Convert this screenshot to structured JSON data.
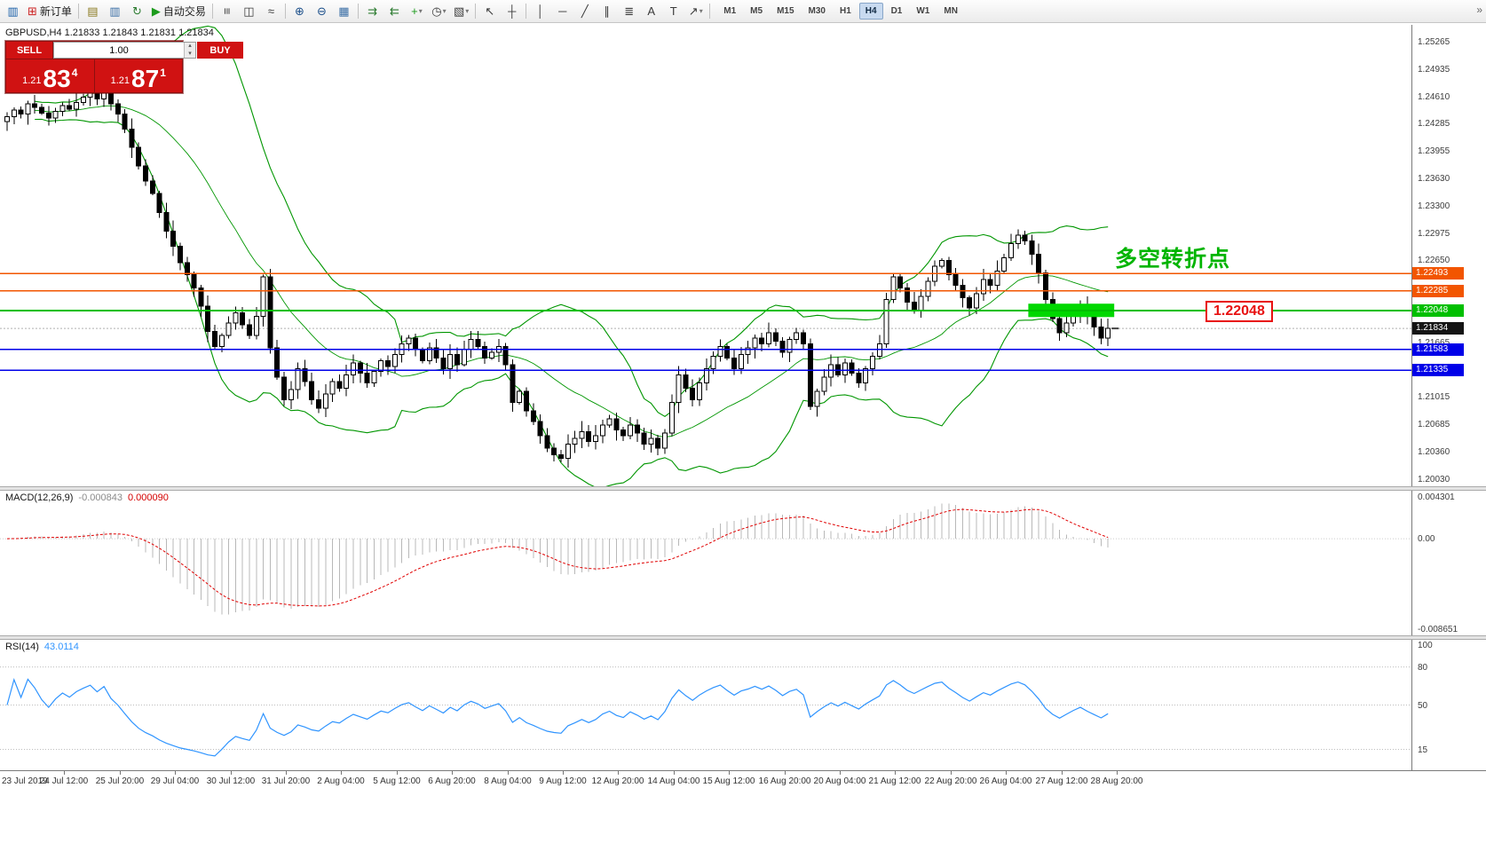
{
  "toolbar": {
    "icons": [
      {
        "name": "terminal-icon",
        "glyph": "▥",
        "color": "#1a5fa8"
      },
      {
        "name": "new-order-button",
        "glyph": "⊞",
        "color": "#cc2222",
        "label": "新订单"
      },
      {
        "name": "sep"
      },
      {
        "name": "market-watch-icon",
        "glyph": "▤",
        "color": "#8a7a20"
      },
      {
        "name": "data-window-icon",
        "glyph": "▥",
        "color": "#3a6ea5"
      },
      {
        "name": "refresh-icon",
        "glyph": "↻",
        "color": "#2e7d32"
      },
      {
        "name": "auto-trading-button",
        "glyph": "▶",
        "color": "#1d9b1d",
        "label": "自动交易"
      },
      {
        "name": "sep"
      },
      {
        "name": "bar-chart-icon",
        "glyph": "≡",
        "rotate": true
      },
      {
        "name": "candlestick-chart-icon",
        "glyph": "◫"
      },
      {
        "name": "line-chart-icon",
        "glyph": "≈"
      },
      {
        "name": "sep"
      },
      {
        "name": "zoom-in-icon",
        "glyph": "⊕",
        "color": "#1b4f8a"
      },
      {
        "name": "zoom-out-icon",
        "glyph": "⊖",
        "color": "#1b4f8a"
      },
      {
        "name": "tile-windows-icon",
        "glyph": "▦",
        "color": "#3a6ea5"
      },
      {
        "name": "sep"
      },
      {
        "name": "auto-scroll-icon",
        "glyph": "⇉",
        "color": "#2e7d32"
      },
      {
        "name": "chart-shift-icon",
        "glyph": "⇇",
        "color": "#2e7d32"
      },
      {
        "name": "indicators-icon",
        "glyph": "+",
        "color": "#1d9b1d",
        "dropdown": true
      },
      {
        "name": "periods-icon",
        "glyph": "◷",
        "dropdown": true
      },
      {
        "name": "templates-icon",
        "glyph": "▧",
        "dropdown": true
      },
      {
        "name": "sep"
      },
      {
        "name": "cursor-icon",
        "glyph": "↖"
      },
      {
        "name": "crosshair-icon",
        "glyph": "┼"
      },
      {
        "name": "sep"
      },
      {
        "name": "vertical-line-icon",
        "glyph": "│"
      },
      {
        "name": "horizontal-line-icon",
        "glyph": "─"
      },
      {
        "name": "trendline-icon",
        "glyph": "╱"
      },
      {
        "name": "channel-icon",
        "glyph": "∥"
      },
      {
        "name": "fibonacci-icon",
        "glyph": "≣"
      },
      {
        "name": "text-icon",
        "glyph": "A"
      },
      {
        "name": "text-label-icon",
        "glyph": "T"
      },
      {
        "name": "arrows-icon",
        "glyph": "↗",
        "dropdown": true
      },
      {
        "name": "sep"
      }
    ],
    "timeframes": [
      "M1",
      "M5",
      "M15",
      "M30",
      "H1",
      "H4",
      "D1",
      "W1",
      "MN"
    ],
    "active_timeframe": "H4",
    "overflow_glyph": "»"
  },
  "chart": {
    "symbol_ohlc": "GBPUSD,H4 1.21833 1.21843 1.21831 1.21834",
    "trade_panel": {
      "sell_label": "SELL",
      "buy_label": "BUY",
      "volume": "1.00",
      "sell_small": "1.21",
      "sell_big": "83",
      "sell_sup": "4",
      "buy_small": "1.21",
      "buy_big": "87",
      "buy_sup": "1"
    },
    "annotation": "多空转折点",
    "callout": "1.22048",
    "current_price": {
      "value": 1.21834,
      "label": "1.21834"
    },
    "levels": [
      {
        "value": 1.22493,
        "label": "1.22493",
        "color": "#f25500"
      },
      {
        "value": 1.22285,
        "label": "1.22285",
        "color": "#f25500"
      },
      {
        "value": 1.22048,
        "label": "1.22048",
        "color": "#00bf00"
      },
      {
        "value": 1.21583,
        "label": "1.21583",
        "color": "#0000e8"
      },
      {
        "value": 1.21335,
        "label": "1.21335",
        "color": "#0000e8"
      }
    ],
    "axis_ticks": [
      "1.25265",
      "1.24935",
      "1.24610",
      "1.24285",
      "1.23955",
      "1.23630",
      "1.23300",
      "1.22975",
      "1.22650",
      "1.21665",
      "1.21015",
      "1.20685",
      "1.20360",
      "1.20030"
    ],
    "highlight_zone": {
      "price_top": 1.2213,
      "price_bottom": 1.2197,
      "start_index": 148,
      "end_index": 159,
      "color": "#00d800"
    }
  },
  "macd": {
    "label": "MACD(12,26,9)",
    "value_main": "-0.000843",
    "value_signal": "0.000090",
    "axis": [
      "0.004301",
      "0.00",
      "-0.008651"
    ],
    "max": 0.004301,
    "min": -0.008651
  },
  "rsi": {
    "label": "RSI(14)",
    "value": "43.0114",
    "axis": [
      "100",
      "80",
      "50",
      "15"
    ],
    "levels": [
      80,
      50,
      15
    ]
  },
  "time_axis": [
    "23 Jul 2019",
    "24 Jul 12:00",
    "25 Jul 20:00",
    "29 Jul 04:00",
    "30 Jul 12:00",
    "31 Jul 20:00",
    "2 Aug 04:00",
    "5 Aug 12:00",
    "6 Aug 20:00",
    "8 Aug 04:00",
    "9 Aug 12:00",
    "12 Aug 20:00",
    "14 Aug 04:00",
    "15 Aug 12:00",
    "16 Aug 20:00",
    "20 Aug 04:00",
    "21 Aug 12:00",
    "22 Aug 20:00",
    "26 Aug 04:00",
    "27 Aug 12:00",
    "28 Aug 20:00"
  ],
  "chart_data": {
    "type": "candlestick",
    "symbol": "GBPUSD",
    "timeframe": "H4",
    "price_range": [
      1.2003,
      1.25265
    ],
    "indicators": [
      "Bollinger Bands",
      "MACD(12,26,9)",
      "RSI(14)"
    ],
    "closes": [
      1.2437,
      1.2445,
      1.244,
      1.2452,
      1.2448,
      1.2441,
      1.2435,
      1.2443,
      1.245,
      1.2446,
      1.2454,
      1.246,
      1.2466,
      1.2458,
      1.247,
      1.2452,
      1.244,
      1.2422,
      1.24,
      1.2378,
      1.236,
      1.2345,
      1.2322,
      1.23,
      1.2282,
      1.2262,
      1.2248,
      1.2232,
      1.221,
      1.218,
      1.2162,
      1.2175,
      1.219,
      1.2202,
      1.2188,
      1.2175,
      1.2198,
      1.2245,
      1.216,
      1.2125,
      1.2098,
      1.211,
      1.2135,
      1.212,
      1.2098,
      1.2088,
      1.2105,
      1.212,
      1.2112,
      1.2128,
      1.2142,
      1.213,
      1.2118,
      1.2132,
      1.2145,
      1.2138,
      1.2152,
      1.2165,
      1.2172,
      1.2158,
      1.2145,
      1.216,
      1.2148,
      1.2135,
      1.2152,
      1.214,
      1.2158,
      1.217,
      1.2162,
      1.2148,
      1.2155,
      1.2162,
      1.214,
      1.2095,
      1.2108,
      1.2085,
      1.2072,
      1.2055,
      1.204,
      1.2032,
      1.2028,
      1.2045,
      1.2052,
      1.206,
      1.2048,
      1.2055,
      1.2068,
      1.2075,
      1.2062,
      1.2055,
      1.2068,
      1.2058,
      1.2045,
      1.2052,
      1.204,
      1.2058,
      1.2095,
      1.2128,
      1.2112,
      1.2098,
      1.2118,
      1.2135,
      1.215,
      1.2162,
      1.2148,
      1.2135,
      1.2152,
      1.216,
      1.2172,
      1.2165,
      1.2178,
      1.2168,
      1.2155,
      1.217,
      1.2178,
      1.2165,
      1.209,
      1.2108,
      1.2125,
      1.214,
      1.2128,
      1.2142,
      1.213,
      1.2118,
      1.2135,
      1.215,
      1.2165,
      1.2218,
      1.2245,
      1.2232,
      1.2215,
      1.2205,
      1.2222,
      1.224,
      1.2258,
      1.2265,
      1.2248,
      1.2235,
      1.222,
      1.2208,
      1.2225,
      1.2242,
      1.2235,
      1.2252,
      1.2268,
      1.2285,
      1.2295,
      1.2288,
      1.2272,
      1.225,
      1.2218,
      1.2195,
      1.2178,
      1.219,
      1.2202,
      1.2212,
      1.2198,
      1.2185,
      1.2172,
      1.21834
    ]
  }
}
